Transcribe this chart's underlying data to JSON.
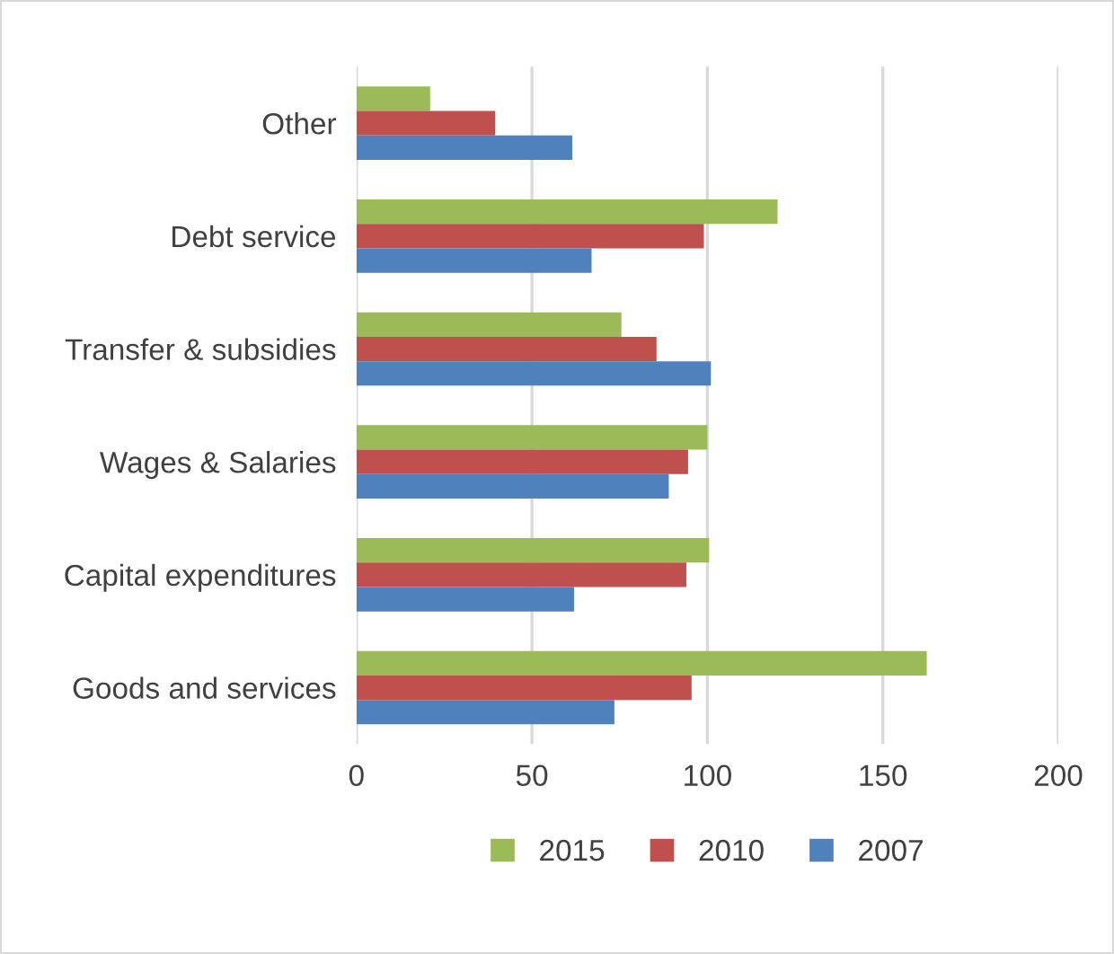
{
  "chart_data": {
    "type": "bar",
    "orientation": "horizontal",
    "categories": [
      "Other",
      "Debt service",
      "Transfer & subsidies",
      "Wages & Salaries",
      "Capital expenditures",
      "Goods and services"
    ],
    "series": [
      {
        "name": "2015",
        "color": "#9bbb59",
        "values": [
          21,
          120,
          75.5,
          100,
          100.5,
          162.5
        ]
      },
      {
        "name": "2010",
        "color": "#c0504d",
        "values": [
          39.5,
          99,
          85.5,
          94.5,
          94,
          95.5
        ]
      },
      {
        "name": "2007",
        "color": "#4f81bd",
        "values": [
          61.5,
          67,
          101,
          89,
          62,
          73.5
        ]
      }
    ],
    "xlim": [
      0,
      200
    ],
    "xticks": [
      0,
      50,
      100,
      150,
      200
    ],
    "grid": "x",
    "legend": "bottom"
  }
}
